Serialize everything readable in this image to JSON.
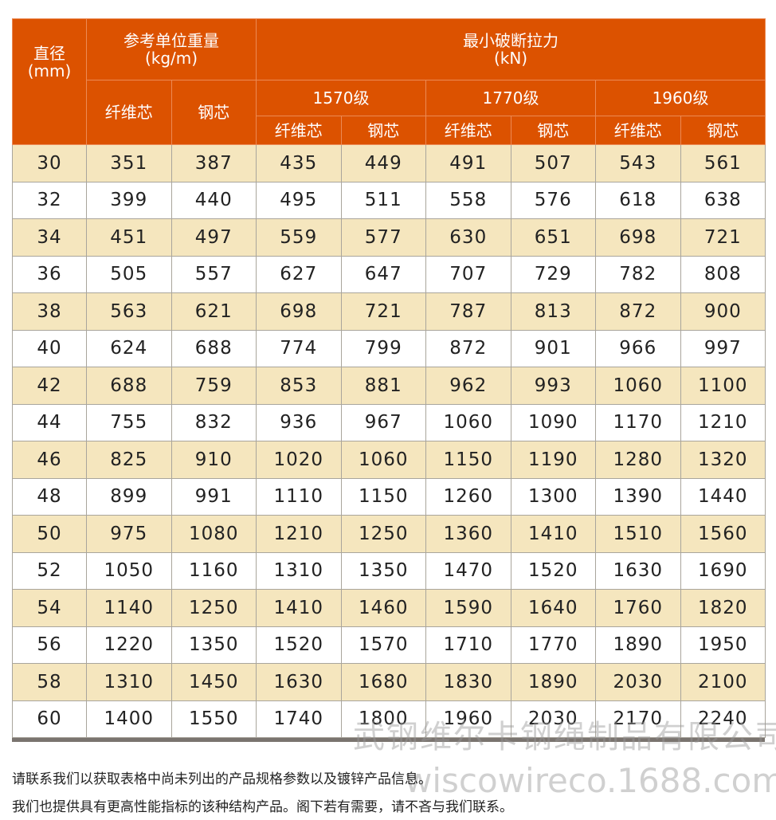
{
  "colors": {
    "header_bg": "#dc5200",
    "alt_row_bg": "#f5e6be",
    "header_text": "#ffffff"
  },
  "header": {
    "diameter": "直径",
    "diameter_unit": "(mm)",
    "weight": "参考单位重量",
    "weight_unit": "(kg/m)",
    "force": "最小破断拉力",
    "force_unit": "(kN)",
    "fiber_core": "纤维芯",
    "steel_core": "钢芯",
    "grades": [
      "1570级",
      "1770级",
      "1960级"
    ]
  },
  "rows": [
    [
      "30",
      "351",
      "387",
      "435",
      "449",
      "491",
      "507",
      "543",
      "561"
    ],
    [
      "32",
      "399",
      "440",
      "495",
      "511",
      "558",
      "576",
      "618",
      "638"
    ],
    [
      "34",
      "451",
      "497",
      "559",
      "577",
      "630",
      "651",
      "698",
      "721"
    ],
    [
      "36",
      "505",
      "557",
      "627",
      "647",
      "707",
      "729",
      "782",
      "808"
    ],
    [
      "38",
      "563",
      "621",
      "698",
      "721",
      "787",
      "813",
      "872",
      "900"
    ],
    [
      "40",
      "624",
      "688",
      "774",
      "799",
      "872",
      "901",
      "966",
      "997"
    ],
    [
      "42",
      "688",
      "759",
      "853",
      "881",
      "962",
      "993",
      "1060",
      "1100"
    ],
    [
      "44",
      "755",
      "832",
      "936",
      "967",
      "1060",
      "1090",
      "1170",
      "1210"
    ],
    [
      "46",
      "825",
      "910",
      "1020",
      "1060",
      "1150",
      "1190",
      "1280",
      "1320"
    ],
    [
      "48",
      "899",
      "991",
      "1110",
      "1150",
      "1260",
      "1300",
      "1390",
      "1440"
    ],
    [
      "50",
      "975",
      "1080",
      "1210",
      "1250",
      "1360",
      "1410",
      "1510",
      "1560"
    ],
    [
      "52",
      "1050",
      "1160",
      "1310",
      "1350",
      "1470",
      "1520",
      "1630",
      "1690"
    ],
    [
      "54",
      "1140",
      "1250",
      "1410",
      "1460",
      "1590",
      "1640",
      "1760",
      "1820"
    ],
    [
      "56",
      "1220",
      "1350",
      "1520",
      "1570",
      "1710",
      "1770",
      "1890",
      "1950"
    ],
    [
      "58",
      "1310",
      "1450",
      "1630",
      "1680",
      "1830",
      "1890",
      "2030",
      "2100"
    ],
    [
      "60",
      "1400",
      "1550",
      "1740",
      "1800",
      "1960",
      "2030",
      "2170",
      "2240"
    ]
  ],
  "notes": [
    "请联系我们以获取表格中尚未列出的产品规格参数以及镀锌产品信息。",
    "我们也提供具有更高性能指标的该种结构产品。阁下若有需要，请不吝与我们联系。"
  ],
  "watermark": {
    "company": "武钢维尔卡钢绳制品有限公司",
    "site": "wiscowireco.1688.com"
  }
}
